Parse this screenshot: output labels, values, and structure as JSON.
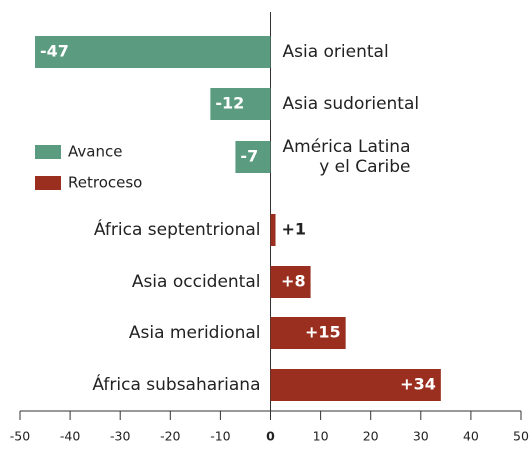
{
  "chart_data": {
    "type": "bar",
    "orientation": "horizontal",
    "categories": [
      "Asia oriental",
      "Asia sudoriental",
      "América Latina\ny el Caribe",
      "África septentrional",
      "Asia occidental",
      "Asia meridional",
      "África subsahariana"
    ],
    "series": [
      {
        "name": "Avance",
        "color": "#5b9c80",
        "values": [
          -47,
          -12,
          -7,
          null,
          null,
          null,
          null
        ],
        "value_labels": [
          "-47",
          "-12",
          "-7",
          null,
          null,
          null,
          null
        ]
      },
      {
        "name": "Retroceso",
        "color": "#9a2f1f",
        "values": [
          null,
          null,
          null,
          1,
          8,
          15,
          34
        ],
        "value_labels": [
          null,
          null,
          null,
          "+1",
          "+8",
          "+15",
          "+34"
        ]
      }
    ],
    "xlim": [
      -50,
      50
    ],
    "xticks": [
      -50,
      -40,
      -30,
      -20,
      -10,
      0,
      10,
      20,
      30,
      40,
      50
    ],
    "legend": "left"
  }
}
